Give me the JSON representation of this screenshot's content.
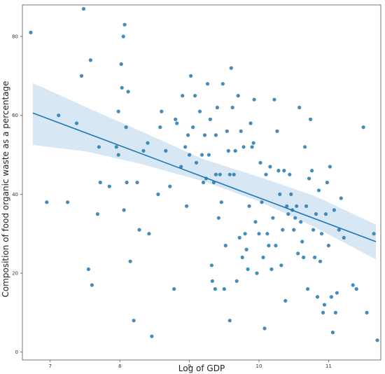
{
  "chart_data": {
    "type": "scatter",
    "title": "",
    "xlabel": "Log of GDP",
    "ylabel": "Composition of food organic waste as a percentage",
    "xlim": [
      6.6,
      11.75
    ],
    "ylim": [
      -2,
      88
    ],
    "xticks": [
      7,
      8,
      9,
      10,
      11
    ],
    "yticks": [
      0,
      20,
      40,
      60,
      80
    ],
    "grid": false,
    "point_color": "#2f7fb5",
    "line_color": "#1f77b4",
    "band_color": "#a9c9e6",
    "regression": {
      "x_start": 6.75,
      "y_start": 60.6,
      "x_end": 11.68,
      "y_end": 28.0
    },
    "confidence_band": {
      "x": [
        6.75,
        7.5,
        8.3,
        9.2,
        10.0,
        10.8,
        11.68
      ],
      "upper": [
        68.2,
        62.2,
        56.0,
        48.9,
        44.4,
        39.6,
        32.3
      ],
      "lower": [
        52.5,
        50.9,
        47.7,
        43.3,
        38.2,
        31.7,
        23.5
      ]
    },
    "points": [
      [
        6.72,
        81
      ],
      [
        6.95,
        38
      ],
      [
        7.12,
        60
      ],
      [
        7.25,
        38
      ],
      [
        7.38,
        58
      ],
      [
        7.45,
        70
      ],
      [
        7.48,
        87
      ],
      [
        7.55,
        21
      ],
      [
        7.58,
        74
      ],
      [
        7.6,
        17
      ],
      [
        7.68,
        35
      ],
      [
        7.7,
        52
      ],
      [
        7.72,
        43
      ],
      [
        7.85,
        42
      ],
      [
        7.95,
        52
      ],
      [
        7.98,
        61
      ],
      [
        7.98,
        50
      ],
      [
        8.02,
        73
      ],
      [
        8.03,
        67
      ],
      [
        8.05,
        80
      ],
      [
        8.06,
        36
      ],
      [
        8.07,
        83
      ],
      [
        8.09,
        57
      ],
      [
        8.1,
        43
      ],
      [
        8.12,
        66
      ],
      [
        8.15,
        23
      ],
      [
        8.2,
        8
      ],
      [
        8.25,
        43
      ],
      [
        8.28,
        31
      ],
      [
        8.34,
        51
      ],
      [
        8.4,
        53
      ],
      [
        8.42,
        30
      ],
      [
        8.46,
        4
      ],
      [
        8.55,
        40
      ],
      [
        8.58,
        57
      ],
      [
        8.6,
        61
      ],
      [
        8.66,
        51
      ],
      [
        8.72,
        42
      ],
      [
        8.78,
        16
      ],
      [
        8.8,
        59
      ],
      [
        8.82,
        58
      ],
      [
        8.88,
        47
      ],
      [
        8.9,
        65
      ],
      [
        8.94,
        52
      ],
      [
        8.96,
        37
      ],
      [
        8.98,
        55
      ],
      [
        9.0,
        50
      ],
      [
        9.02,
        70
      ],
      [
        9.05,
        57
      ],
      [
        9.08,
        65
      ],
      [
        9.1,
        48
      ],
      [
        9.15,
        61
      ],
      [
        9.18,
        50
      ],
      [
        9.2,
        43
      ],
      [
        9.22,
        55
      ],
      [
        9.24,
        44
      ],
      [
        9.26,
        68
      ],
      [
        9.28,
        50
      ],
      [
        9.3,
        59
      ],
      [
        9.32,
        22
      ],
      [
        9.33,
        18
      ],
      [
        9.35,
        43
      ],
      [
        9.37,
        16
      ],
      [
        9.38,
        55
      ],
      [
        9.38,
        45
      ],
      [
        9.4,
        62
      ],
      [
        9.42,
        34
      ],
      [
        9.44,
        45
      ],
      [
        9.46,
        38
      ],
      [
        9.48,
        68
      ],
      [
        9.5,
        16
      ],
      [
        9.52,
        27
      ],
      [
        9.54,
        56
      ],
      [
        9.56,
        51
      ],
      [
        9.58,
        45
      ],
      [
        9.58,
        8
      ],
      [
        9.6,
        72
      ],
      [
        9.62,
        62
      ],
      [
        9.64,
        45
      ],
      [
        9.66,
        51
      ],
      [
        9.68,
        18
      ],
      [
        9.7,
        65
      ],
      [
        9.72,
        29
      ],
      [
        9.74,
        56
      ],
      [
        9.76,
        24
      ],
      [
        9.78,
        52
      ],
      [
        9.8,
        30
      ],
      [
        9.82,
        26
      ],
      [
        9.84,
        21
      ],
      [
        9.86,
        37
      ],
      [
        9.88,
        58
      ],
      [
        9.9,
        52
      ],
      [
        9.92,
        53
      ],
      [
        9.93,
        64
      ],
      [
        9.95,
        33
      ],
      [
        9.97,
        20
      ],
      [
        10.0,
        30
      ],
      [
        10.02,
        48
      ],
      [
        10.04,
        38
      ],
      [
        10.06,
        24
      ],
      [
        10.08,
        6
      ],
      [
        10.1,
        45
      ],
      [
        10.12,
        30
      ],
      [
        10.14,
        27
      ],
      [
        10.16,
        47
      ],
      [
        10.18,
        21
      ],
      [
        10.2,
        34
      ],
      [
        10.22,
        64
      ],
      [
        10.24,
        27
      ],
      [
        10.26,
        56
      ],
      [
        10.28,
        46
      ],
      [
        10.3,
        40
      ],
      [
        10.32,
        22
      ],
      [
        10.34,
        31
      ],
      [
        10.36,
        46
      ],
      [
        10.38,
        13
      ],
      [
        10.4,
        37
      ],
      [
        10.42,
        35
      ],
      [
        10.44,
        45
      ],
      [
        10.46,
        40
      ],
      [
        10.48,
        36
      ],
      [
        10.5,
        31
      ],
      [
        10.52,
        34
      ],
      [
        10.54,
        37
      ],
      [
        10.56,
        25
      ],
      [
        10.58,
        62
      ],
      [
        10.6,
        33
      ],
      [
        10.62,
        28
      ],
      [
        10.64,
        24
      ],
      [
        10.66,
        52
      ],
      [
        10.68,
        37
      ],
      [
        10.7,
        16
      ],
      [
        10.72,
        44
      ],
      [
        10.74,
        59
      ],
      [
        10.76,
        46
      ],
      [
        10.78,
        31
      ],
      [
        10.8,
        24
      ],
      [
        10.82,
        35
      ],
      [
        10.84,
        14
      ],
      [
        10.86,
        41
      ],
      [
        10.88,
        23
      ],
      [
        10.9,
        30
      ],
      [
        10.92,
        10
      ],
      [
        10.94,
        12
      ],
      [
        10.96,
        35
      ],
      [
        10.98,
        43
      ],
      [
        11.0,
        27
      ],
      [
        11.02,
        47
      ],
      [
        11.04,
        14
      ],
      [
        11.06,
        5
      ],
      [
        11.08,
        36
      ],
      [
        11.1,
        10
      ],
      [
        11.12,
        15
      ],
      [
        11.15,
        31
      ],
      [
        11.18,
        39
      ],
      [
        11.22,
        29
      ],
      [
        11.35,
        17
      ],
      [
        11.4,
        16
      ],
      [
        11.5,
        57
      ],
      [
        11.55,
        10
      ],
      [
        11.65,
        30
      ],
      [
        11.7,
        3
      ]
    ]
  }
}
